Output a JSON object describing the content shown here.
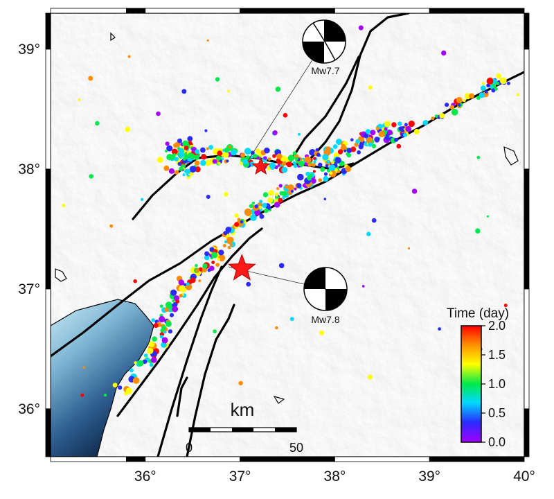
{
  "map": {
    "lon_range": [
      35.0,
      40.0
    ],
    "lat_range": [
      35.6,
      39.3
    ],
    "lon_ticks": [
      {
        "value": 36,
        "label": "36°"
      },
      {
        "value": 37,
        "label": "37°"
      },
      {
        "value": 38,
        "label": "38°"
      },
      {
        "value": 39,
        "label": "39°"
      },
      {
        "value": 40,
        "label": "40°"
      }
    ],
    "lat_ticks": [
      {
        "value": 36,
        "label": "36°"
      },
      {
        "value": 37,
        "label": "37°"
      },
      {
        "value": 38,
        "label": "38°"
      },
      {
        "value": 39,
        "label": "39°"
      }
    ],
    "basemap": "shaded-relief grayscale with sea bathymetry in the southwest",
    "colors": {
      "sea_light": "#bfe3ef",
      "sea_dark": "#0d2a55",
      "fault": "#000000",
      "epicenter": "#ff1a1a"
    }
  },
  "mainshocks": [
    {
      "lon": 37.02,
      "lat": 37.17,
      "label": "Mw7.8",
      "symbol": "star"
    },
    {
      "lon": 37.22,
      "lat": 38.02,
      "label": "Mw7.7",
      "symbol": "star"
    }
  ],
  "scalebar": {
    "title": "km",
    "start_label": "0",
    "end_label": "50",
    "length_km": 50
  },
  "colorbar": {
    "title": "Time (day)",
    "ticks": [
      "2.0",
      "1.5",
      "1.0",
      "0.5",
      "0.0"
    ],
    "range": [
      0.0,
      2.0
    ],
    "colormap": [
      "#a200ff",
      "#2b2bff",
      "#00d9ff",
      "#00e84a",
      "#ffff00",
      "#ff8c00",
      "#ff0000"
    ]
  }
}
